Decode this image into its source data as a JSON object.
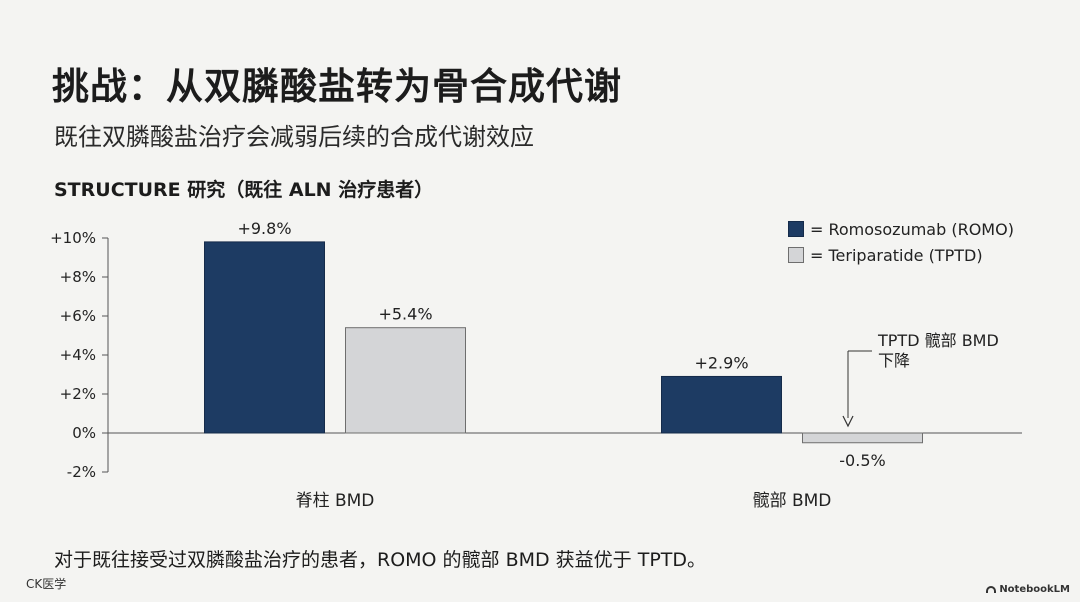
{
  "header": {
    "title": "挑战：从双膦酸盐转为骨合成代谢",
    "subtitle": "既往双膦酸盐治疗会减弱后续的合成代谢效应"
  },
  "chart_heading": "STRUCTURE 研究（既往 ALN 治疗患者）",
  "chart_data": {
    "type": "bar",
    "categories": [
      "脊柱 BMD",
      "髋部 BMD"
    ],
    "series": [
      {
        "name": "= Romosozumab (ROMO)",
        "values": [
          9.8,
          2.9
        ],
        "labels": [
          "+9.8%",
          "+2.9%"
        ],
        "color": "#1d3b63"
      },
      {
        "name": "= Teriparatide (TPTD)",
        "values": [
          5.4,
          -0.5
        ],
        "labels": [
          "+5.4%",
          "-0.5%"
        ],
        "color": "#d4d5d7"
      }
    ],
    "ylim": [
      -2,
      10
    ],
    "yticks": [
      -2,
      0,
      2,
      4,
      6,
      8,
      10
    ],
    "ytick_labels": [
      "-2%",
      "0%",
      "+2%",
      "+4%",
      "+6%",
      "+8%",
      "+10%"
    ],
    "legend_position": "top-right",
    "annotation": {
      "text_line1": "TPTD 髋部 BMD",
      "text_line2": "下降",
      "target": "髋部 BMD / TPTD"
    },
    "grid": false
  },
  "footnote": "对于既往接受过双膦酸盐治疗的患者，ROMO 的髋部 BMD 获益优于 TPTD。",
  "watermark_left": "CK医学",
  "watermark_right": "NotebookLM",
  "icons": {
    "brand": "notebooklm-icon"
  }
}
